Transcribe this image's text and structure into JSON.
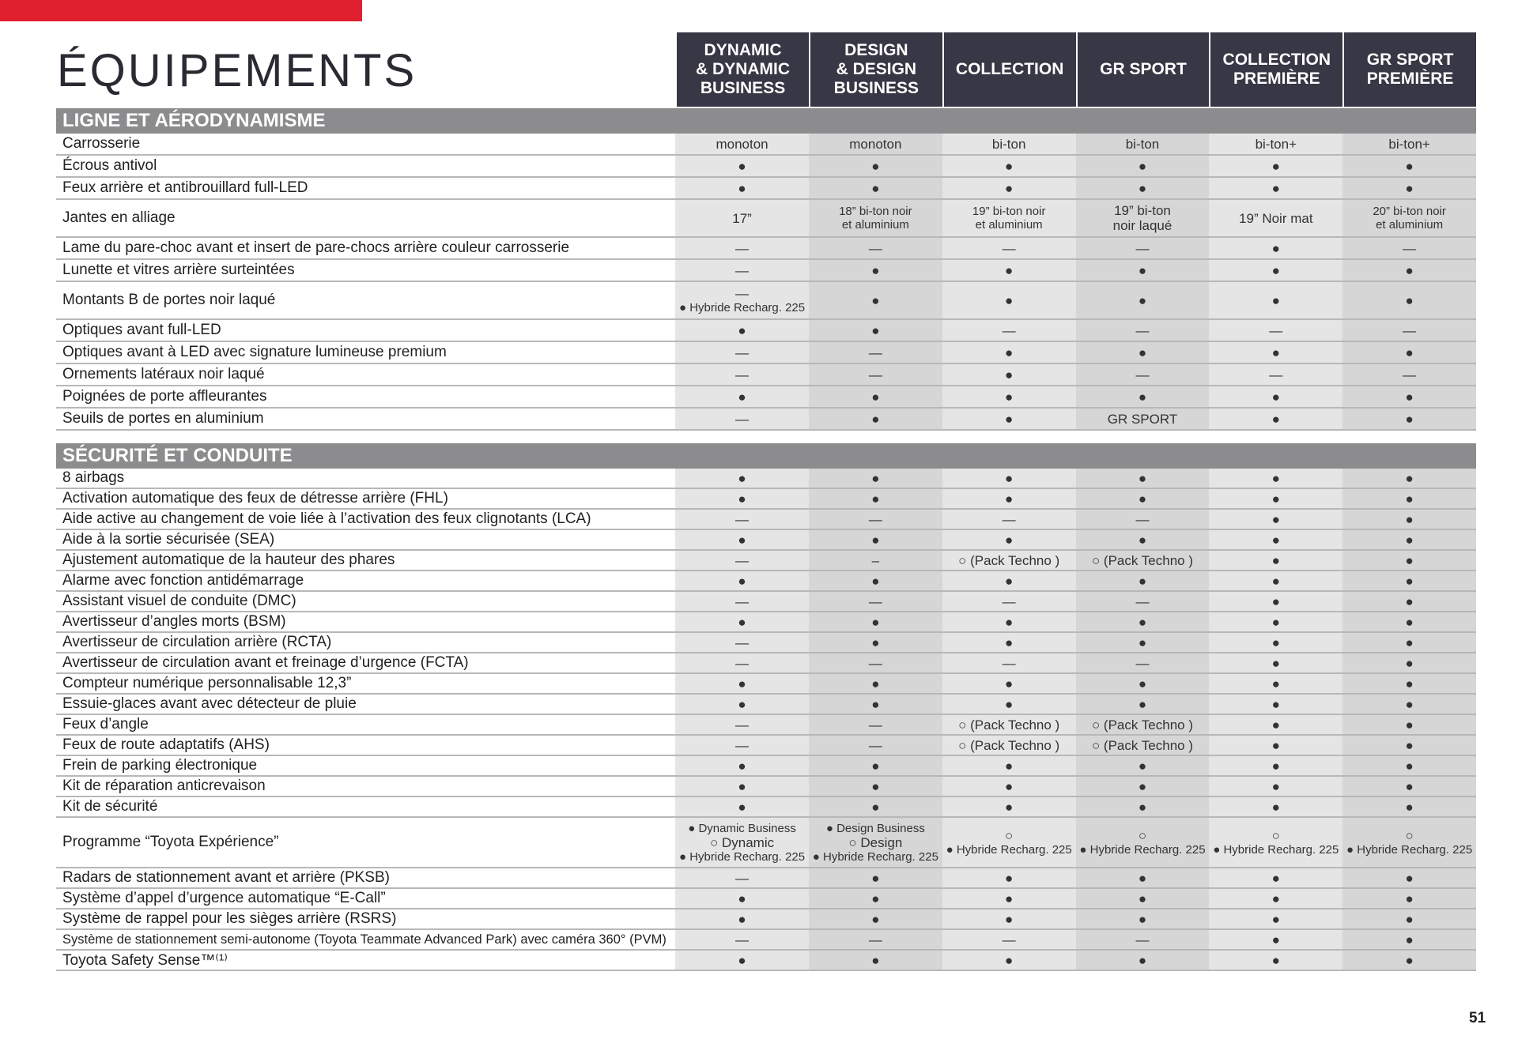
{
  "header": {
    "title": "ÉQUIPEMENTS",
    "columns": [
      [
        "DYNAMIC",
        "& DYNAMIC",
        "BUSINESS"
      ],
      [
        "DESIGN",
        "& DESIGN",
        "BUSINESS"
      ],
      [
        "COLLECTION"
      ],
      [
        "GR SPORT"
      ],
      [
        "COLLECTION",
        "PREMIÈRE"
      ],
      [
        "GR SPORT",
        "PREMIÈRE"
      ]
    ]
  },
  "sections": [
    {
      "title": "LIGNE ET AÉRODYNAMISME",
      "rows": [
        {
          "label": "Carrosserie",
          "cells": [
            [
              "monoton"
            ],
            [
              "monoton"
            ],
            [
              "bi-ton"
            ],
            [
              "bi-ton"
            ],
            [
              "bi-ton+"
            ],
            [
              "bi-ton+"
            ]
          ]
        },
        {
          "label": "Écrous antivol",
          "cells": [
            [
              "●"
            ],
            [
              "●"
            ],
            [
              "●"
            ],
            [
              "●"
            ],
            [
              "●"
            ],
            [
              "●"
            ]
          ]
        },
        {
          "label": "Feux arrière et antibrouillard full-LED",
          "cells": [
            [
              "●"
            ],
            [
              "●"
            ],
            [
              "●"
            ],
            [
              "●"
            ],
            [
              "●"
            ],
            [
              "●"
            ]
          ]
        },
        {
          "label": "Jantes en alliage",
          "cells": [
            [
              "17”"
            ],
            [
              "18” bi-ton noir",
              "et aluminium"
            ],
            [
              "19” bi-ton noir",
              "et aluminium"
            ],
            [
              "19” bi-ton",
              "noir laqué"
            ],
            [
              "19” Noir mat"
            ],
            [
              "20” bi-ton noir",
              "et aluminium"
            ]
          ]
        },
        {
          "label": "Lame du pare-choc avant et insert de pare-chocs arrière couleur carrosserie",
          "cells": [
            [
              "—"
            ],
            [
              "—"
            ],
            [
              "—"
            ],
            [
              "—"
            ],
            [
              "●"
            ],
            [
              "—"
            ]
          ]
        },
        {
          "label": "Lunette et vitres arrière surteintées",
          "cells": [
            [
              "—"
            ],
            [
              "●"
            ],
            [
              "●"
            ],
            [
              "●"
            ],
            [
              "●"
            ],
            [
              "●"
            ]
          ]
        },
        {
          "label": "Montants B de portes noir laqué",
          "cells": [
            [
              "—",
              "● Hybride Recharg. 225"
            ],
            [
              "●"
            ],
            [
              "●"
            ],
            [
              "●"
            ],
            [
              "●"
            ],
            [
              "●"
            ]
          ]
        },
        {
          "label": "Optiques avant full-LED",
          "cells": [
            [
              "●"
            ],
            [
              "●"
            ],
            [
              "—"
            ],
            [
              "—"
            ],
            [
              "—"
            ],
            [
              "—"
            ]
          ]
        },
        {
          "label": "Optiques avant à LED avec signature lumineuse premium",
          "cells": [
            [
              "—"
            ],
            [
              "—"
            ],
            [
              "●"
            ],
            [
              "●"
            ],
            [
              "●"
            ],
            [
              "●"
            ]
          ]
        },
        {
          "label": "Ornements latéraux noir laqué",
          "cells": [
            [
              "—"
            ],
            [
              "—"
            ],
            [
              "●"
            ],
            [
              "—"
            ],
            [
              "—"
            ],
            [
              "—"
            ]
          ]
        },
        {
          "label": "Poignées de porte affleurantes",
          "cells": [
            [
              "●"
            ],
            [
              "●"
            ],
            [
              "●"
            ],
            [
              "●"
            ],
            [
              "●"
            ],
            [
              "●"
            ]
          ]
        },
        {
          "label": "Seuils de portes en aluminium",
          "cells": [
            [
              "—"
            ],
            [
              "●"
            ],
            [
              "●"
            ],
            [
              "GR SPORT"
            ],
            [
              "●"
            ],
            [
              "●"
            ]
          ]
        }
      ]
    },
    {
      "title": "SÉCURITÉ ET CONDUITE",
      "rows": [
        {
          "label": "8 airbags",
          "cells": [
            [
              "●"
            ],
            [
              "●"
            ],
            [
              "●"
            ],
            [
              "●"
            ],
            [
              "●"
            ],
            [
              "●"
            ]
          ]
        },
        {
          "label": "Activation automatique des feux de détresse arrière (FHL)",
          "cells": [
            [
              "●"
            ],
            [
              "●"
            ],
            [
              "●"
            ],
            [
              "●"
            ],
            [
              "●"
            ],
            [
              "●"
            ]
          ]
        },
        {
          "label": "Aide active au changement de voie liée à l’activation des feux clignotants (LCA)",
          "cells": [
            [
              "—"
            ],
            [
              "—"
            ],
            [
              "—"
            ],
            [
              "—"
            ],
            [
              "●"
            ],
            [
              "●"
            ]
          ]
        },
        {
          "label": "Aide à la sortie sécurisée (SEA)",
          "cells": [
            [
              "●"
            ],
            [
              "●"
            ],
            [
              "●"
            ],
            [
              "●"
            ],
            [
              "●"
            ],
            [
              "●"
            ]
          ]
        },
        {
          "label": "Ajustement automatique de la hauteur des phares",
          "cells": [
            [
              "—"
            ],
            [
              "–"
            ],
            [
              "○ (Pack Techno )"
            ],
            [
              "○ (Pack Techno )"
            ],
            [
              "●"
            ],
            [
              "●"
            ]
          ]
        },
        {
          "label": "Alarme avec fonction antidémarrage",
          "cells": [
            [
              "●"
            ],
            [
              "●"
            ],
            [
              "●"
            ],
            [
              "●"
            ],
            [
              "●"
            ],
            [
              "●"
            ]
          ]
        },
        {
          "label": "Assistant visuel de conduite (DMC)",
          "cells": [
            [
              "—"
            ],
            [
              "—"
            ],
            [
              "—"
            ],
            [
              "—"
            ],
            [
              "●"
            ],
            [
              "●"
            ]
          ]
        },
        {
          "label": "Avertisseur d’angles morts (BSM)",
          "cells": [
            [
              "●"
            ],
            [
              "●"
            ],
            [
              "●"
            ],
            [
              "●"
            ],
            [
              "●"
            ],
            [
              "●"
            ]
          ]
        },
        {
          "label": "Avertisseur de circulation arrière (RCTA)",
          "cells": [
            [
              "—"
            ],
            [
              "●"
            ],
            [
              "●"
            ],
            [
              "●"
            ],
            [
              "●"
            ],
            [
              "●"
            ]
          ]
        },
        {
          "label": "Avertisseur de circulation avant et freinage d’urgence (FCTA)",
          "cells": [
            [
              "—"
            ],
            [
              "—"
            ],
            [
              "—"
            ],
            [
              "—"
            ],
            [
              "●"
            ],
            [
              "●"
            ]
          ]
        },
        {
          "label": "Compteur numérique personnalisable 12,3”",
          "cells": [
            [
              "●"
            ],
            [
              "●"
            ],
            [
              "●"
            ],
            [
              "●"
            ],
            [
              "●"
            ],
            [
              "●"
            ]
          ]
        },
        {
          "label": "Essuie-glaces avant avec détecteur de pluie",
          "cells": [
            [
              "●"
            ],
            [
              "●"
            ],
            [
              "●"
            ],
            [
              "●"
            ],
            [
              "●"
            ],
            [
              "●"
            ]
          ]
        },
        {
          "label": "Feux d’angle",
          "cells": [
            [
              "—"
            ],
            [
              "—"
            ],
            [
              "○ (Pack Techno )"
            ],
            [
              "○ (Pack Techno )"
            ],
            [
              "●"
            ],
            [
              "●"
            ]
          ]
        },
        {
          "label": "Feux de route adaptatifs (AHS)",
          "cells": [
            [
              "—"
            ],
            [
              "—"
            ],
            [
              "○ (Pack Techno )"
            ],
            [
              "○ (Pack Techno )"
            ],
            [
              "●"
            ],
            [
              "●"
            ]
          ]
        },
        {
          "label": "Frein de parking électronique",
          "cells": [
            [
              "●"
            ],
            [
              "●"
            ],
            [
              "●"
            ],
            [
              "●"
            ],
            [
              "●"
            ],
            [
              "●"
            ]
          ]
        },
        {
          "label": "Kit de réparation anticrevaison",
          "cells": [
            [
              "●"
            ],
            [
              "●"
            ],
            [
              "●"
            ],
            [
              "●"
            ],
            [
              "●"
            ],
            [
              "●"
            ]
          ]
        },
        {
          "label": "Kit de sécurité",
          "cells": [
            [
              "●"
            ],
            [
              "●"
            ],
            [
              "●"
            ],
            [
              "●"
            ],
            [
              "●"
            ],
            [
              "●"
            ]
          ]
        },
        {
          "label": "Programme “Toyota Expérience”",
          "cells": [
            [
              "● Dynamic Business",
              "○ Dynamic",
              "● Hybride Recharg. 225"
            ],
            [
              "● Design Business",
              "○ Design",
              "● Hybride Recharg. 225"
            ],
            [
              "○",
              "● Hybride Recharg. 225"
            ],
            [
              "○",
              "● Hybride Recharg. 225"
            ],
            [
              "○",
              "● Hybride Recharg. 225"
            ],
            [
              "○",
              "● Hybride Recharg. 225"
            ]
          ]
        },
        {
          "label": "Radars de stationnement avant et arrière (PKSB)",
          "cells": [
            [
              "—"
            ],
            [
              "●"
            ],
            [
              "●"
            ],
            [
              "●"
            ],
            [
              "●"
            ],
            [
              "●"
            ]
          ]
        },
        {
          "label": "Système d’appel d’urgence automatique “E-Call”",
          "cells": [
            [
              "●"
            ],
            [
              "●"
            ],
            [
              "●"
            ],
            [
              "●"
            ],
            [
              "●"
            ],
            [
              "●"
            ]
          ]
        },
        {
          "label": "Système de rappel pour les sièges arrière (RSRS)",
          "cells": [
            [
              "●"
            ],
            [
              "●"
            ],
            [
              "●"
            ],
            [
              "●"
            ],
            [
              "●"
            ],
            [
              "●"
            ]
          ]
        },
        {
          "label": "Système de stationnement semi-autonome (Toyota Teammate Advanced Park) avec caméra 360° (PVM)",
          "cells": [
            [
              "—"
            ],
            [
              "—"
            ],
            [
              "—"
            ],
            [
              "—"
            ],
            [
              "●"
            ],
            [
              "●"
            ]
          ]
        },
        {
          "label": "Toyota Safety Sense™⁽¹⁾",
          "cells": [
            [
              "●"
            ],
            [
              "●"
            ],
            [
              "●"
            ],
            [
              "●"
            ],
            [
              "●"
            ],
            [
              "●"
            ]
          ]
        }
      ]
    }
  ],
  "page_number": "51"
}
